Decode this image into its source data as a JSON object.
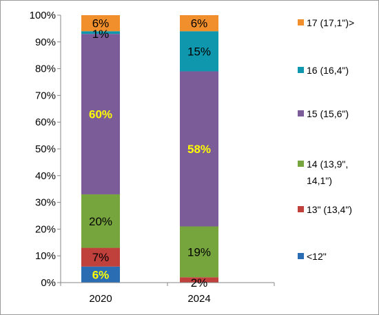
{
  "chart_data": {
    "type": "bar",
    "stacked": true,
    "percent": true,
    "categories": [
      "2020",
      "2024"
    ],
    "ylim": [
      0,
      100
    ],
    "yticks": [
      "0%",
      "10%",
      "20%",
      "30%",
      "40%",
      "50%",
      "60%",
      "70%",
      "80%",
      "90%",
      "100%"
    ],
    "grid": false,
    "legend_position": "right",
    "series": [
      {
        "name": "<12\"",
        "color": "#2a6db2",
        "values": [
          6,
          0
        ],
        "labels": [
          "6%",
          ""
        ],
        "label_colors": [
          "#ffff00",
          "#000000"
        ]
      },
      {
        "name": "13\" (13,4\")",
        "color": "#c0403c",
        "values": [
          7,
          2
        ],
        "labels": [
          "7%",
          "2%"
        ],
        "label_colors": [
          "#000000",
          "#000000"
        ]
      },
      {
        "name": "14 (13,9\", 14,1\")",
        "legend_lines": [
          "14 (13,9\",",
          "14,1\")"
        ],
        "color": "#77a53d",
        "values": [
          20,
          19
        ],
        "labels": [
          "20%",
          "19%"
        ],
        "label_colors": [
          "#000000",
          "#000000"
        ]
      },
      {
        "name": "15 (15,6\")",
        "color": "#7b5b98",
        "values": [
          60,
          58
        ],
        "labels": [
          "60%",
          "58%"
        ],
        "label_colors": [
          "#ffff00",
          "#ffff00"
        ]
      },
      {
        "name": "16 (16,4\")",
        "color": "#0f97ad",
        "values": [
          1,
          15
        ],
        "labels": [
          "1%",
          "15%"
        ],
        "label_colors": [
          "#000000",
          "#000000"
        ]
      },
      {
        "name": "17 (17,1\")>",
        "color": "#f08f2b",
        "values": [
          6,
          6
        ],
        "labels": [
          "6%",
          "6%"
        ],
        "label_colors": [
          "#000000",
          "#000000"
        ]
      }
    ]
  }
}
